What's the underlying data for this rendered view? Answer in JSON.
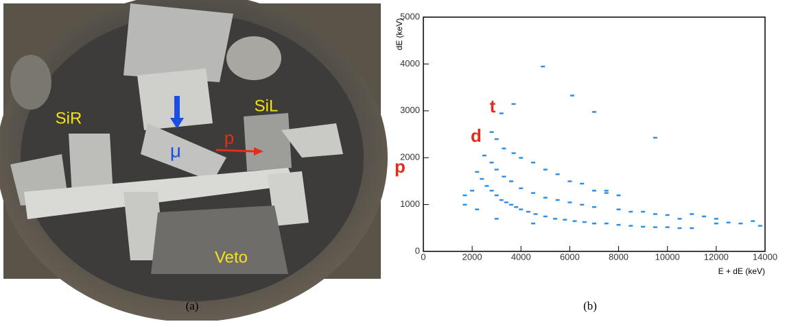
{
  "photo": {
    "labels": [
      "SiR",
      "SiL",
      "μ",
      "p",
      "Veto"
    ]
  },
  "captions": [
    "(a)",
    "(b)"
  ],
  "chart_data": {
    "type": "scatter",
    "xlabel": "E + dE (keV)",
    "ylabel": "dE (keV)",
    "annotations": [
      "p",
      "d",
      "t"
    ],
    "x": [
      2200,
      2400,
      2600,
      2800,
      3000,
      3200,
      3400,
      3600,
      3800,
      4000,
      4300,
      4600,
      5000,
      5400,
      5800,
      6200,
      6600,
      7000,
      7500,
      8000,
      8500,
      9000,
      9500,
      10000,
      10500,
      11000,
      12000,
      12500,
      13000,
      13500,
      13800,
      2500,
      2800,
      3000,
      3300,
      3600,
      4000,
      4500,
      5000,
      5500,
      6000,
      6500,
      7000,
      7500,
      8000,
      8500,
      9000,
      9500,
      10000,
      10500,
      11000,
      11500,
      12000,
      2800,
      3000,
      3300,
      3700,
      4000,
      4500,
      5000,
      5500,
      6000,
      6500,
      7000,
      7500,
      8000,
      4900,
      6100,
      7000,
      3700,
      3200,
      9500,
      1700,
      2000,
      2200,
      3000,
      4500,
      1700
    ],
    "values": [
      1700,
      1550,
      1400,
      1300,
      1200,
      1100,
      1050,
      1000,
      950,
      900,
      850,
      800,
      750,
      700,
      680,
      650,
      630,
      600,
      600,
      570,
      550,
      530,
      520,
      520,
      500,
      500,
      600,
      620,
      600,
      650,
      550,
      2050,
      1900,
      1750,
      1600,
      1500,
      1350,
      1250,
      1150,
      1100,
      1050,
      1000,
      950,
      1300,
      900,
      850,
      850,
      800,
      780,
      700,
      800,
      750,
      700,
      2550,
      2400,
      2200,
      2100,
      2000,
      1900,
      1750,
      1650,
      1500,
      1450,
      1300,
      1250,
      1200,
      3950,
      3330,
      2980,
      3150,
      2950,
      2430,
      1000,
      1300,
      900,
      700,
      600,
      1200
    ],
    "color": "#2f8fe8",
    "xlim": [
      0,
      14000
    ],
    "ylim": [
      0,
      5000
    ],
    "xticks": [
      0,
      2000,
      4000,
      6000,
      8000,
      10000,
      12000,
      14000
    ],
    "yticks": [
      0,
      1000,
      2000,
      3000,
      4000,
      5000
    ]
  }
}
